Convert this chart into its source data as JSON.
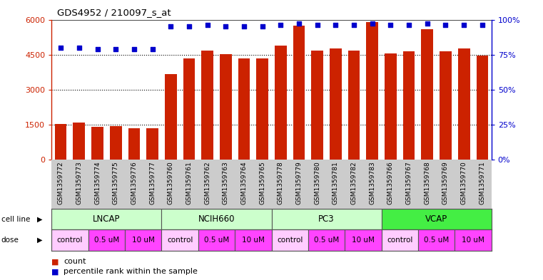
{
  "title": "GDS4952 / 210097_s_at",
  "samples": [
    "GSM1359772",
    "GSM1359773",
    "GSM1359774",
    "GSM1359775",
    "GSM1359776",
    "GSM1359777",
    "GSM1359760",
    "GSM1359761",
    "GSM1359762",
    "GSM1359763",
    "GSM1359764",
    "GSM1359765",
    "GSM1359778",
    "GSM1359779",
    "GSM1359780",
    "GSM1359781",
    "GSM1359782",
    "GSM1359783",
    "GSM1359766",
    "GSM1359767",
    "GSM1359768",
    "GSM1359769",
    "GSM1359770",
    "GSM1359771"
  ],
  "counts": [
    1540,
    1600,
    1390,
    1440,
    1340,
    1350,
    3650,
    4350,
    4680,
    4520,
    4350,
    4350,
    4900,
    5750,
    4680,
    4750,
    4680,
    5900,
    4550,
    4650,
    5580,
    4650,
    4750,
    4450
  ],
  "percentile_ranks": [
    80,
    80,
    79,
    79,
    79,
    79,
    95,
    95,
    96,
    95,
    95,
    95,
    96,
    97,
    96,
    96,
    96,
    97,
    96,
    96,
    97,
    96,
    96,
    96
  ],
  "cell_lines": [
    {
      "name": "LNCAP",
      "start": 0,
      "end": 6,
      "color": "#ccffcc"
    },
    {
      "name": "NCIH660",
      "start": 6,
      "end": 12,
      "color": "#ccffcc"
    },
    {
      "name": "PC3",
      "start": 12,
      "end": 18,
      "color": "#ccffcc"
    },
    {
      "name": "VCAP",
      "start": 18,
      "end": 24,
      "color": "#44ee44"
    }
  ],
  "doses": [
    {
      "label": "control",
      "start": 0,
      "end": 2,
      "color": "#ffccff"
    },
    {
      "label": "0.5 uM",
      "start": 2,
      "end": 4,
      "color": "#ff44ff"
    },
    {
      "label": "10 uM",
      "start": 4,
      "end": 6,
      "color": "#ff44ff"
    },
    {
      "label": "control",
      "start": 6,
      "end": 8,
      "color": "#ffccff"
    },
    {
      "label": "0.5 uM",
      "start": 8,
      "end": 10,
      "color": "#ff44ff"
    },
    {
      "label": "10 uM",
      "start": 10,
      "end": 12,
      "color": "#ff44ff"
    },
    {
      "label": "control",
      "start": 12,
      "end": 14,
      "color": "#ffccff"
    },
    {
      "label": "0.5 uM",
      "start": 14,
      "end": 16,
      "color": "#ff44ff"
    },
    {
      "label": "10 uM",
      "start": 16,
      "end": 18,
      "color": "#ff44ff"
    },
    {
      "label": "control",
      "start": 18,
      "end": 20,
      "color": "#ffccff"
    },
    {
      "label": "0.5 uM",
      "start": 20,
      "end": 22,
      "color": "#ff44ff"
    },
    {
      "label": "10 uM",
      "start": 22,
      "end": 24,
      "color": "#ff44ff"
    }
  ],
  "bar_color": "#CC2200",
  "dot_color": "#0000CC",
  "background_color": "#ffffff",
  "ylim_left": [
    0,
    6000
  ],
  "ylim_right": [
    0,
    100
  ],
  "yticks_left": [
    0,
    1500,
    3000,
    4500,
    6000
  ],
  "yticks_right": [
    0,
    25,
    50,
    75,
    100
  ],
  "plot_bg": "#ffffff",
  "xticklabel_bg": "#cccccc",
  "cell_line_border": "#008800",
  "dose_border": "#880088"
}
